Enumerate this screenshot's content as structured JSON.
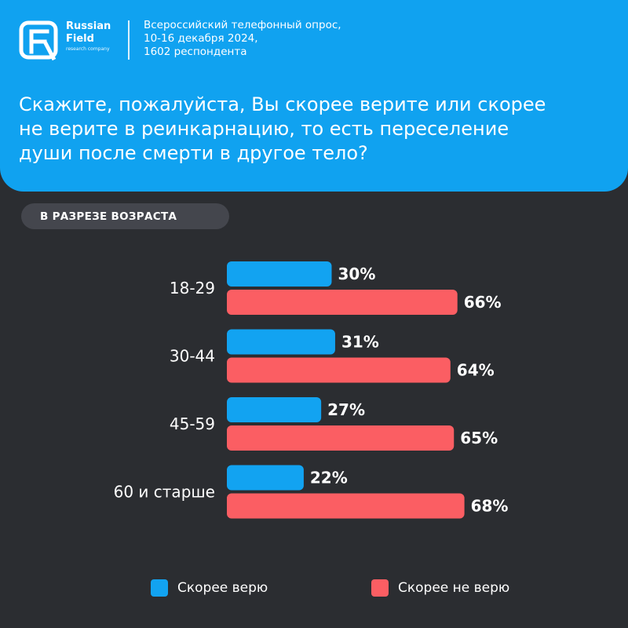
{
  "brand": {
    "name_line1": "Russian",
    "name_line2": "Field",
    "tagline": "research company"
  },
  "survey": {
    "line1": "Всероссийский телефонный опрос,",
    "line2": "10-16 декабря 2024,",
    "line3": "1602 респондента"
  },
  "question": {
    "line1": "Скажите, пожалуйста, Вы скорее  верите или скорее",
    "line2": "не верите в  реинкарнацию, то есть переселение",
    "line3": "души после смерти в другое тело?"
  },
  "section_label": "В  РАЗРЕЗЕ ВОЗРАСТА",
  "colors": {
    "header_bg": "#10a2f0",
    "background": "#2b2d31",
    "believe": "#12a3f1",
    "not_believe": "#fb5e63"
  },
  "chart_data": {
    "type": "bar",
    "orientation": "horizontal",
    "categories": [
      "18-29",
      "30-44",
      "45-59",
      "60 и старше"
    ],
    "series": [
      {
        "name": "Скорее верю",
        "values": [
          30,
          31,
          27,
          22
        ],
        "labels": [
          "30%",
          "31%",
          "27%",
          "22%"
        ],
        "color": "#12a3f1"
      },
      {
        "name": "Скорее не верю",
        "values": [
          66,
          64,
          65,
          68
        ],
        "labels": [
          "66%",
          "64%",
          "65%",
          "68%"
        ],
        "color": "#fb5e63"
      }
    ],
    "unit": "%",
    "xlim": [
      0,
      100
    ],
    "grid": false,
    "legend": "bottom"
  }
}
